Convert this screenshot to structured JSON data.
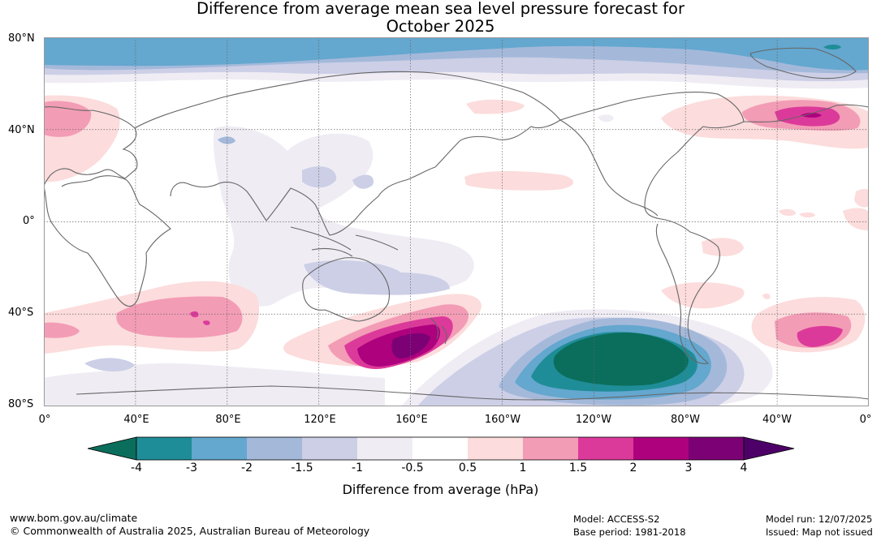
{
  "title_line1": "Difference from average mean sea level pressure forecast for",
  "title_line2": "October 2025",
  "lat_labels": [
    "80°N",
    "40°N",
    "0°",
    "40°S",
    "80°S"
  ],
  "lon_labels": [
    "0°",
    "40°E",
    "80°E",
    "120°E",
    "160°E",
    "160°W",
    "120°W",
    "80°W",
    "40°W",
    "0°"
  ],
  "colorbar": {
    "title": "Difference from average (hPa)",
    "tick_labels": [
      "-4",
      "-3",
      "-2",
      "-1.5",
      "-1",
      "-0.5",
      "0.5",
      "1",
      "1.5",
      "2",
      "3",
      "4"
    ],
    "colors": [
      "#0b6e5c",
      "#1f8d97",
      "#64a7cf",
      "#a4b9da",
      "#cccfe6",
      "#efecf4",
      "#ffffff",
      "#fcdcdc",
      "#f39cb6",
      "#dc3a9a",
      "#ae017e",
      "#7b0175",
      "#4d0168"
    ]
  },
  "footer": {
    "website": "www.bom.gov.au/climate",
    "copyright": "© Commonwealth of Australia 2025, Australian Bureau of Meteorology",
    "model": "Model: ACCESS-S2",
    "base_period": "Base period: 1981-2018",
    "model_run": "Model run: 12/07/2025",
    "issued": "Issued: Map not issued"
  }
}
